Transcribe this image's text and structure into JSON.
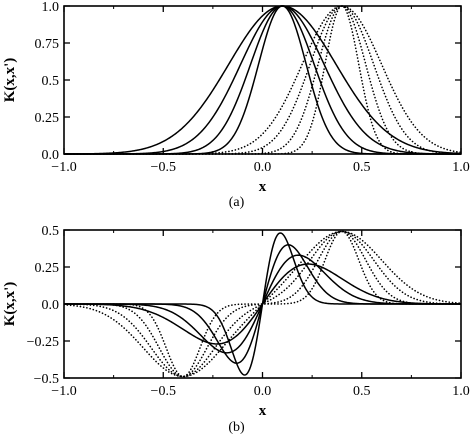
{
  "chart_data": [
    {
      "type": "line",
      "panel": "a",
      "caption": "(a)",
      "xlabel": "x",
      "ylabel": "K(x,x')",
      "xlim": [
        -1.0,
        1.0
      ],
      "ylim": [
        0,
        1.0
      ],
      "xticks": [
        "−1.0",
        "−0.5",
        "0.0",
        "0.5",
        "1.0"
      ],
      "yticks": [
        "0.0",
        "0.25",
        "0.5",
        "0.75",
        "1.0"
      ],
      "x_tick_values": [
        -1.0,
        -0.5,
        0.0,
        0.5,
        1.0
      ],
      "y_tick_values": [
        0,
        0.25,
        0.5,
        0.75,
        1.0
      ],
      "grid": false,
      "series": [
        {
          "style": "solid",
          "center": 0.1,
          "width": 0.12
        },
        {
          "style": "solid",
          "center": 0.1,
          "width": 0.16
        },
        {
          "style": "solid",
          "center": 0.1,
          "width": 0.21
        },
        {
          "style": "solid",
          "center": 0.1,
          "width": 0.27
        },
        {
          "style": "dotted",
          "center": 0.4,
          "width": 0.085
        },
        {
          "style": "dotted",
          "center": 0.4,
          "width": 0.12
        },
        {
          "style": "dotted",
          "center": 0.4,
          "width": 0.16
        },
        {
          "style": "dotted",
          "center": 0.4,
          "width": 0.2
        }
      ]
    },
    {
      "type": "line",
      "panel": "b",
      "caption": "(b)",
      "xlabel": "x",
      "ylabel": "K(x,x')",
      "xlim": [
        -1.0,
        1.0
      ],
      "ylim": [
        -0.5,
        0.5
      ],
      "xticks": [
        "−1.0",
        "−0.5",
        "0.0",
        "0.5",
        "1.0"
      ],
      "yticks": [
        "−0.5",
        "−0.25",
        "0.0",
        "0.25",
        "0.5"
      ],
      "x_tick_values": [
        -1.0,
        -0.5,
        0.0,
        0.5,
        1.0
      ],
      "y_tick_values": [
        -0.5,
        -0.25,
        0.0,
        0.25,
        0.5
      ],
      "grid": false,
      "series": [
        {
          "style": "solid",
          "center": 0.0,
          "extreme_at": 0.09,
          "amplitude": 0.48
        },
        {
          "style": "solid",
          "center": 0.0,
          "extreme_at": 0.13,
          "amplitude": 0.4
        },
        {
          "style": "solid",
          "center": 0.0,
          "extreme_at": 0.18,
          "amplitude": 0.33
        },
        {
          "style": "solid",
          "center": 0.0,
          "extreme_at": 0.23,
          "amplitude": 0.27
        },
        {
          "style": "dotted",
          "center": 0.0,
          "extreme_at": 0.4,
          "amplitude": 0.49
        },
        {
          "style": "dotted",
          "center": 0.0,
          "extreme_at": 0.4,
          "amplitude": 0.49
        },
        {
          "style": "dotted",
          "center": 0.0,
          "extreme_at": 0.4,
          "amplitude": 0.49
        },
        {
          "style": "dotted",
          "center": 0.0,
          "extreme_at": 0.4,
          "amplitude": 0.49
        }
      ]
    }
  ]
}
